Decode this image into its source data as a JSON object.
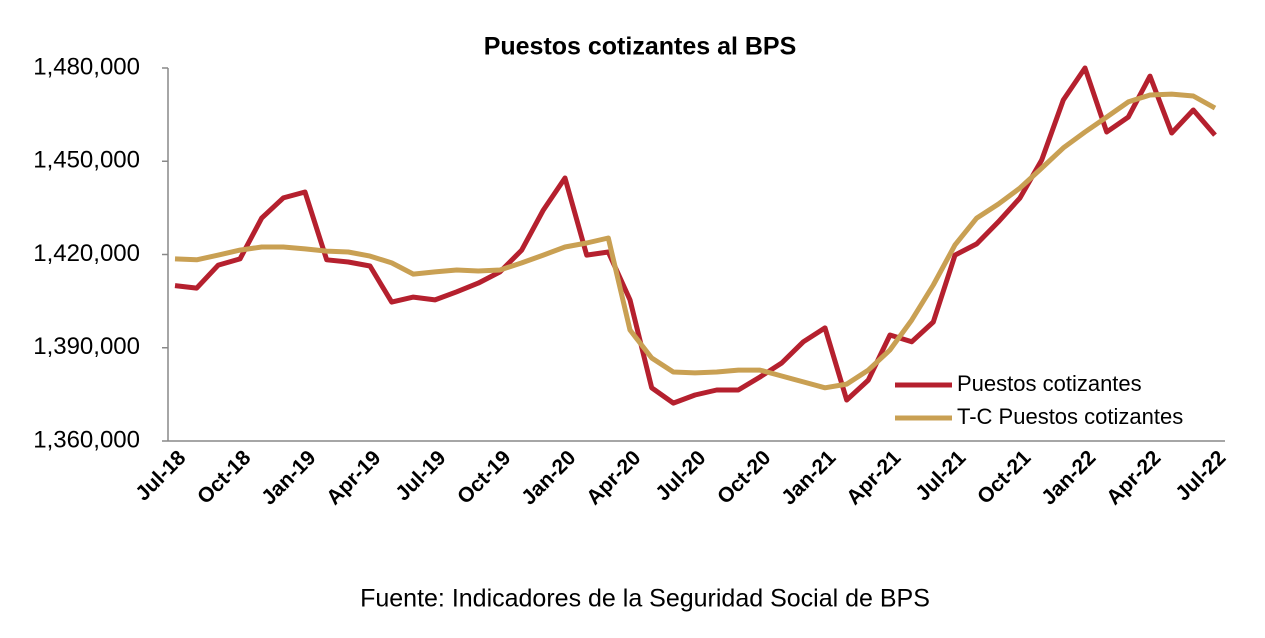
{
  "chart_data": {
    "type": "line",
    "title": "Puestos cotizantes al BPS",
    "source": "Fuente: Indicadores de la Seguridad Social de BPS",
    "categories": [
      "Jul-18",
      null,
      null,
      "Oct-18",
      null,
      null,
      "Jan-19",
      null,
      null,
      "Apr-19",
      null,
      null,
      "Jul-19",
      null,
      null,
      "Oct-19",
      null,
      null,
      "Jan-20",
      null,
      null,
      "Apr-20",
      null,
      null,
      "Jul-20",
      null,
      null,
      "Oct-20",
      null,
      null,
      "Jan-21",
      null,
      null,
      "Apr-21",
      null,
      null,
      "Jul-21",
      null,
      null,
      "Oct-21",
      null,
      null,
      "Jan-22",
      null,
      null,
      "Apr-22",
      null,
      null,
      "Jul-22"
    ],
    "series": [
      {
        "name": "Puestos cotizantes",
        "color": "#b5202e",
        "values": [
          1410000,
          1409200,
          1416600,
          1418600,
          1431700,
          1438200,
          1440100,
          1418300,
          1417600,
          1416300,
          1404700,
          1406300,
          1405400,
          1408000,
          1410800,
          1414400,
          1421400,
          1434300,
          1444600,
          1419800,
          1420800,
          1405400,
          1377100,
          1372200,
          1374800,
          1376400,
          1376400,
          1380600,
          1385100,
          1391900,
          1396400,
          1373200,
          1379600,
          1394100,
          1391900,
          1398300,
          1419800,
          1423400,
          1430500,
          1438200,
          1450400,
          1469700,
          1480000,
          1459400,
          1464200,
          1477400,
          1459100,
          1466500,
          1458400
        ]
      },
      {
        "name": "T-C Puestos cotizantes",
        "color": "#c9a053",
        "values": [
          1418600,
          1418300,
          1419800,
          1421400,
          1422400,
          1422400,
          1421800,
          1421100,
          1420800,
          1419500,
          1417300,
          1413700,
          1414400,
          1415000,
          1414700,
          1415000,
          1417300,
          1419800,
          1422400,
          1423700,
          1425300,
          1395700,
          1386700,
          1382200,
          1381900,
          1382200,
          1382800,
          1382800,
          1380900,
          1379000,
          1377100,
          1378300,
          1382800,
          1389300,
          1398900,
          1410200,
          1423100,
          1431700,
          1436200,
          1441400,
          1447800,
          1454300,
          1459400,
          1464200,
          1469100,
          1471300,
          1471600,
          1471000,
          1467100
        ]
      }
    ],
    "ylim": [
      1360000,
      1480000
    ],
    "yticks": [
      {
        "value": 1360000,
        "label": "1,360,000"
      },
      {
        "value": 1390000,
        "label": "1,390,000"
      },
      {
        "value": 1420000,
        "label": "1,420,000"
      },
      {
        "value": 1450000,
        "label": "1,450,000"
      },
      {
        "value": 1480000,
        "label": "1,480,000"
      }
    ],
    "legend": "lower right",
    "grid": false
  }
}
